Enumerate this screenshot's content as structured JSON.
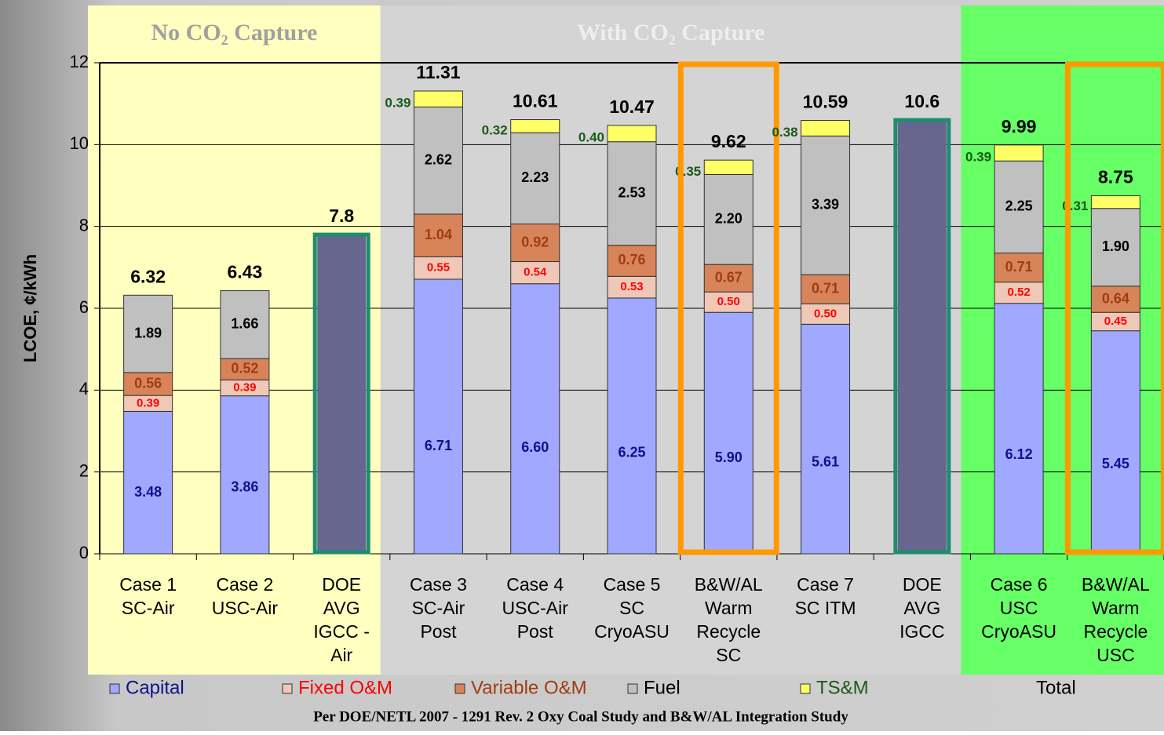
{
  "chart_data": {
    "type": "stacked_bar",
    "y_label": "LCOE, ¢/kWh",
    "footnote": "Per DOE/NETL 2007 - 1291 Rev. 2 Oxy Coal Study and B&W/AL Integration Study",
    "categories": [
      [
        "Case 1",
        "SC-Air"
      ],
      [
        "Case 2",
        "USC-Air"
      ],
      [
        "DOE",
        "AVG",
        "IGCC -",
        "Air"
      ],
      [
        "Case 3",
        "SC-Air",
        "Post"
      ],
      [
        "Case 4",
        "USC-Air",
        "Post"
      ],
      [
        "Case 5",
        "SC",
        "CryoASU"
      ],
      [
        "B&W/AL",
        "Warm",
        "Recycle",
        "SC"
      ],
      [
        "Case 7",
        "SC ITM"
      ],
      [
        "DOE",
        "AVG",
        "IGCC"
      ],
      [
        "Case 6",
        "USC",
        "CryoASU"
      ],
      [
        "B&W/AL",
        "Warm",
        "Recycle",
        "USC"
      ]
    ],
    "regions": [
      {
        "label": "No CO₂ Capture",
        "start": 0,
        "end": 3,
        "color": "#ffffc0",
        "label_color": "#a0a0a0"
      },
      {
        "label": "With CO₂ Capture",
        "start": 3,
        "end": 9,
        "color": "#d4d4d4",
        "label_color": "#eeeeee"
      },
      {
        "start": 9,
        "end": 11,
        "color": "#66ff66"
      }
    ],
    "outline_colors": [
      null,
      null,
      "#1e8c6e",
      null,
      null,
      null,
      "#ff9900",
      null,
      "#1e8c6e",
      null,
      "#ff9900"
    ],
    "series": [
      {
        "name": "Capital",
        "color": "#a0a8ff",
        "label_color": "#10108c",
        "values": [
          3.48,
          3.86,
          null,
          6.71,
          6.6,
          6.25,
          5.9,
          5.61,
          null,
          6.12,
          5.45
        ],
        "value_labels": [
          "3.48",
          "3.86",
          null,
          "6.71",
          "6.60",
          "6.25",
          "5.90",
          "5.61",
          null,
          "6.12",
          "5.45"
        ]
      },
      {
        "name": "Fixed O&M",
        "color": "#f0c8b8",
        "label_color": "#ff0000",
        "values": [
          0.39,
          0.39,
          null,
          0.55,
          0.54,
          0.53,
          0.5,
          0.5,
          null,
          0.52,
          0.45
        ],
        "value_labels": [
          "0.39",
          "0.39",
          null,
          "0.55",
          "0.54",
          "0.53",
          "0.50",
          "0.50",
          null,
          "0.52",
          "0.45"
        ]
      },
      {
        "name": "Variable O&M",
        "color": "#d8845a",
        "label_color": "#a03c14",
        "values": [
          0.56,
          0.52,
          null,
          1.04,
          0.92,
          0.76,
          0.67,
          0.71,
          null,
          0.71,
          0.64
        ],
        "value_labels": [
          "0.56",
          "0.52",
          null,
          "1.04",
          "0.92",
          "0.76",
          "0.67",
          "0.71",
          null,
          "0.71",
          "0.64"
        ]
      },
      {
        "name": "Fuel",
        "color": "#c0c0c0",
        "label_color": "#000000",
        "values": [
          1.89,
          1.66,
          null,
          2.62,
          2.23,
          2.53,
          2.2,
          3.39,
          null,
          2.25,
          1.9
        ],
        "value_labels": [
          "1.89",
          "1.66",
          null,
          "2.62",
          "2.23",
          "2.53",
          "2.20",
          "3.39",
          null,
          "2.25",
          "1.90"
        ]
      },
      {
        "name": "TS&M",
        "color": "#ffff66",
        "label_color": "#1a5a1a",
        "values": [
          null,
          null,
          null,
          0.39,
          0.32,
          0.4,
          0.35,
          0.38,
          null,
          0.39,
          0.31
        ],
        "value_labels": [
          null,
          null,
          null,
          "0.39",
          "0.32",
          "0.40",
          "0.35",
          "0.38",
          null,
          "0.39",
          "0.31"
        ]
      },
      {
        "name": "Total",
        "color": "#66668e",
        "label_color": "#000000",
        "values": [
          6.32,
          6.43,
          7.8,
          11.31,
          10.61,
          10.47,
          9.62,
          10.59,
          10.6,
          9.99,
          8.75
        ]
      }
    ],
    "ylim": [
      0,
      12
    ],
    "yticks": [
      0,
      2,
      4,
      6,
      8,
      10,
      12
    ],
    "grid": true
  }
}
